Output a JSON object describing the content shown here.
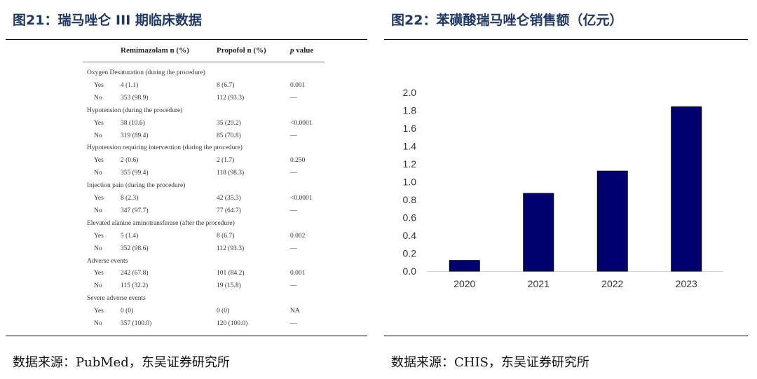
{
  "left_panel": {
    "title": "图21：瑞马唑仑 III 期临床数据",
    "source": "数据来源：PubMed，东吴证券研究所",
    "table": {
      "headers": [
        "Remimazolam n (%)",
        "Propofol n (%)",
        "value"
      ],
      "p_label": "p",
      "sections": [
        {
          "name": "Oxygen Desaturation (during the procedure)",
          "rows": [
            {
              "label": "Yes",
              "remimazolam": "4 (1.1)",
              "propofol": "8 (6.7)",
              "p": "0.001"
            },
            {
              "label": "No",
              "remimazolam": "353 (98.9)",
              "propofol": "112 (93.3)",
              "p": "—"
            }
          ]
        },
        {
          "name": "Hypotension (during the procedure)",
          "rows": [
            {
              "label": "Yes",
              "remimazolam": "38 (10.6)",
              "propofol": "35 (29.2)",
              "p": "<0.0001"
            },
            {
              "label": "No",
              "remimazolam": "319 (89.4)",
              "propofol": "85 (70.8)",
              "p": "—"
            }
          ]
        },
        {
          "name": "Hypotension requiring intervention (during the procedure)",
          "rows": [
            {
              "label": "Yes",
              "remimazolam": "2 (0.6)",
              "propofol": "2 (1.7)",
              "p": "0.250"
            },
            {
              "label": "No",
              "remimazolam": "355 (99.4)",
              "propofol": "118 (98.3)",
              "p": "—"
            }
          ]
        },
        {
          "name": "Injection pain (during the procedure)",
          "rows": [
            {
              "label": "Yes",
              "remimazolam": "8 (2.3)",
              "propofol": "42 (35.3)",
              "p": "<0.0001"
            },
            {
              "label": "No",
              "remimazolam": "347 (97.7)",
              "propofol": "77 (64.7)",
              "p": "—"
            }
          ]
        },
        {
          "name": "Elevated alanine aminotransferase (after the procedure)",
          "rows": [
            {
              "label": "Yes",
              "remimazolam": "5 (1.4)",
              "propofol": "8 (6.7)",
              "p": "0.002"
            },
            {
              "label": "No",
              "remimazolam": "352 (98.6)",
              "propofol": "112 (93.3)",
              "p": "—"
            }
          ]
        },
        {
          "name": "Adverse events",
          "rows": [
            {
              "label": "Yes",
              "remimazolam": "242 (67.8)",
              "propofol": "101 (84.2)",
              "p": "0.001"
            },
            {
              "label": "No",
              "remimazolam": "115 (32.2)",
              "propofol": "19 (15.8)",
              "p": "—"
            }
          ]
        },
        {
          "name": "Severe adverse events",
          "rows": [
            {
              "label": "Yes",
              "remimazolam": "0 (0)",
              "propofol": "0 (0)",
              "p": "NA"
            },
            {
              "label": "No",
              "remimazolam": "357 (100.0)",
              "propofol": "120 (100.0)",
              "p": "—"
            }
          ]
        }
      ]
    }
  },
  "right_panel": {
    "title": "图22：苯磺酸瑞马唑仑销售额（亿元）",
    "source": "数据来源：CHIS，东吴证券研究所"
  },
  "chart_data": {
    "type": "bar",
    "title": "",
    "xlabel": "",
    "ylabel": "",
    "categories": [
      "2020",
      "2021",
      "2022",
      "2023"
    ],
    "values": [
      0.12,
      0.87,
      1.12,
      1.84
    ],
    "ylim": [
      0,
      2.0
    ],
    "yticks": [
      "0.0",
      "0.2",
      "0.4",
      "0.6",
      "0.8",
      "1.0",
      "1.2",
      "1.4",
      "1.6",
      "1.8",
      "2.0"
    ],
    "bar_color": "#00006e",
    "grid": false,
    "legend": "none"
  }
}
